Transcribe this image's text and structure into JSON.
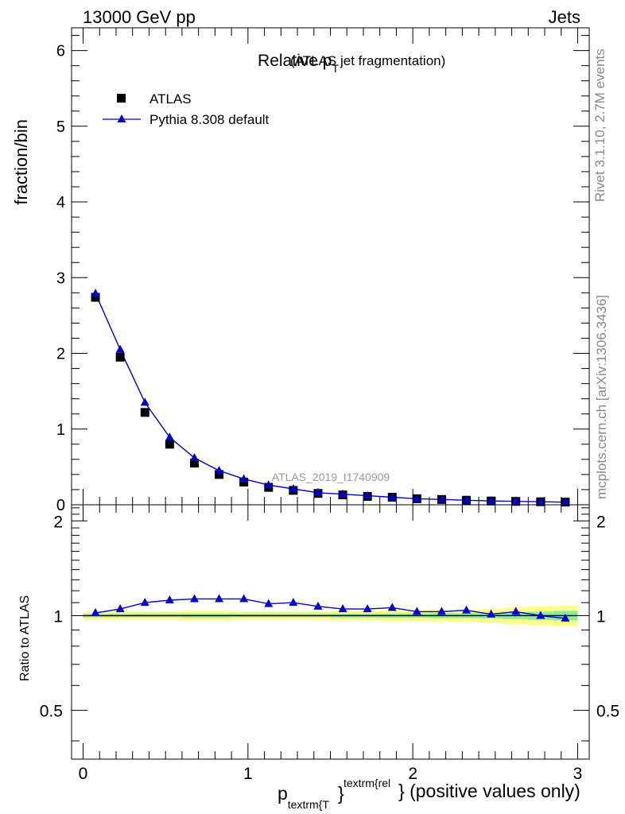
{
  "header": {
    "left": "13000 GeV pp",
    "right": "Jets"
  },
  "side_labels": {
    "rivet": "Rivet 3.1.10,  2.7M events",
    "mcplots": "mcplots.cern.ch [arXiv:1306.3436]"
  },
  "chart_data": [
    {
      "type": "scatter",
      "title_main": "Relative p",
      "title_sub": "T",
      "title_rest": "(ATLAS jet fragmentation)",
      "ylabel": "fraction/bin",
      "watermark": "ATLAS_2019_I1740909",
      "xlim": [
        -0.07,
        3.07
      ],
      "ylim": [
        0,
        6.3
      ],
      "yticks": [
        0,
        1,
        2,
        3,
        4,
        5,
        6
      ],
      "ytick_labels": [
        "0",
        "1",
        "2",
        "3",
        "4",
        "5",
        "6"
      ],
      "legend": {
        "position": "top-left",
        "entries": [
          "ATLAS",
          "Pythia 8.308 default"
        ]
      },
      "x": [
        0.075,
        0.225,
        0.375,
        0.525,
        0.675,
        0.825,
        0.975,
        1.125,
        1.275,
        1.425,
        1.575,
        1.725,
        1.875,
        2.025,
        2.175,
        2.325,
        2.475,
        2.625,
        2.775,
        2.925
      ],
      "series": [
        {
          "name": "ATLAS",
          "marker": "square",
          "color": "#000000",
          "values": [
            2.74,
            1.95,
            1.22,
            0.8,
            0.55,
            0.4,
            0.3,
            0.23,
            0.19,
            0.15,
            0.13,
            0.11,
            0.1,
            0.08,
            0.07,
            0.06,
            0.05,
            0.045,
            0.04,
            0.035
          ]
        },
        {
          "name": "Pythia 8.308 default",
          "marker": "triangle",
          "color": "#0000cc",
          "values": [
            2.79,
            2.05,
            1.35,
            0.89,
            0.62,
            0.45,
            0.34,
            0.26,
            0.21,
            0.16,
            0.14,
            0.12,
            0.1,
            0.08,
            0.07,
            0.06,
            0.05,
            0.045,
            0.04,
            0.035
          ]
        }
      ]
    },
    {
      "type": "scatter",
      "ylabel": "Ratio to ATLAS",
      "xlabel_main": "p",
      "xlabel_sub": "textrm{T",
      "xlabel_brace": "}",
      "xlabel_sup": "textrm{rel",
      "xlabel_rest": "} (positive values only)",
      "xlim": [
        -0.07,
        3.07
      ],
      "ylim": [
        0.35,
        2.25
      ],
      "xticks": [
        0,
        1,
        2,
        3
      ],
      "xtick_labels": [
        "0",
        "1",
        "2",
        "3"
      ],
      "yticks": [
        0.5,
        1,
        2
      ],
      "ytick_labels": [
        "0.5",
        "1",
        "2"
      ],
      "ytick_labels_right": [
        "0.5",
        "1",
        "2"
      ],
      "reference": 1,
      "band_outer_color": "#ffff88",
      "band_inner_color": "#88ee99",
      "band_outer_halfwidth": [
        0.03,
        0.03,
        0.03,
        0.03,
        0.035,
        0.035,
        0.03,
        0.03,
        0.03,
        0.03,
        0.035,
        0.035,
        0.04,
        0.04,
        0.045,
        0.045,
        0.05,
        0.06,
        0.07,
        0.075
      ],
      "band_inner_halfwidth": [
        0.012,
        0.012,
        0.012,
        0.012,
        0.014,
        0.014,
        0.012,
        0.012,
        0.012,
        0.012,
        0.014,
        0.014,
        0.016,
        0.016,
        0.018,
        0.018,
        0.02,
        0.025,
        0.03,
        0.035
      ],
      "x": [
        0.075,
        0.225,
        0.375,
        0.525,
        0.675,
        0.825,
        0.975,
        1.125,
        1.275,
        1.425,
        1.575,
        1.725,
        1.875,
        2.025,
        2.175,
        2.325,
        2.475,
        2.625,
        2.775,
        2.925
      ],
      "series": [
        {
          "name": "Pythia 8.308 default",
          "marker": "triangle",
          "color": "#0000cc",
          "values": [
            1.02,
            1.05,
            1.1,
            1.12,
            1.13,
            1.13,
            1.13,
            1.09,
            1.1,
            1.07,
            1.05,
            1.05,
            1.06,
            1.03,
            1.03,
            1.04,
            1.01,
            1.03,
            1.0,
            0.98
          ]
        }
      ]
    }
  ]
}
